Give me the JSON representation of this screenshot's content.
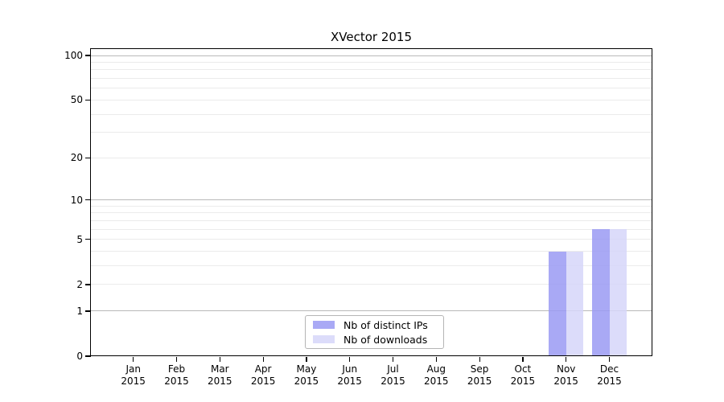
{
  "figure": {
    "background": "#ffffff"
  },
  "chart_data": {
    "type": "bar",
    "title": "XVector 2015",
    "categories": [
      "Jan 2015",
      "Feb 2015",
      "Mar 2015",
      "Apr 2015",
      "May 2015",
      "Jun 2015",
      "Jul 2015",
      "Aug 2015",
      "Sep 2015",
      "Oct 2015",
      "Nov 2015",
      "Dec 2015"
    ],
    "x_tick_months": [
      "Jan",
      "Feb",
      "Mar",
      "Apr",
      "May",
      "Jun",
      "Jul",
      "Aug",
      "Sep",
      "Oct",
      "Nov",
      "Dec"
    ],
    "x_tick_year": "2015",
    "series": [
      {
        "name": "Nb of distinct IPs",
        "color": "#a9a9f5",
        "values": [
          0,
          0,
          0,
          0,
          0,
          0,
          0,
          0,
          0,
          0,
          4,
          6
        ]
      },
      {
        "name": "Nb of downloads",
        "color": "#dcdcfa",
        "values": [
          0,
          0,
          0,
          0,
          0,
          0,
          0,
          0,
          0,
          0,
          4,
          6
        ]
      }
    ],
    "y_axis": {
      "scale": "log1p",
      "ylim": [
        0,
        112
      ],
      "tick_values": [
        0,
        1,
        2,
        5,
        10,
        20,
        50,
        100
      ],
      "tick_labels": [
        "0",
        "1",
        "2",
        "5",
        "10",
        "20",
        "50",
        "100"
      ],
      "minor_gridline_values": [
        2,
        3,
        4,
        5,
        6,
        7,
        8,
        9,
        20,
        30,
        40,
        50,
        60,
        70,
        80,
        90
      ],
      "major_gridline_values": [
        1,
        10,
        100
      ]
    },
    "grid": {
      "minor_color": "#ebebeb",
      "major_color": "#b9b9b9"
    },
    "legend": {
      "position": "lower center",
      "items": [
        {
          "label": "Nb of distinct IPs",
          "color": "#a9a9f5"
        },
        {
          "label": "Nb of downloads",
          "color": "#dcdcfa"
        }
      ]
    }
  }
}
